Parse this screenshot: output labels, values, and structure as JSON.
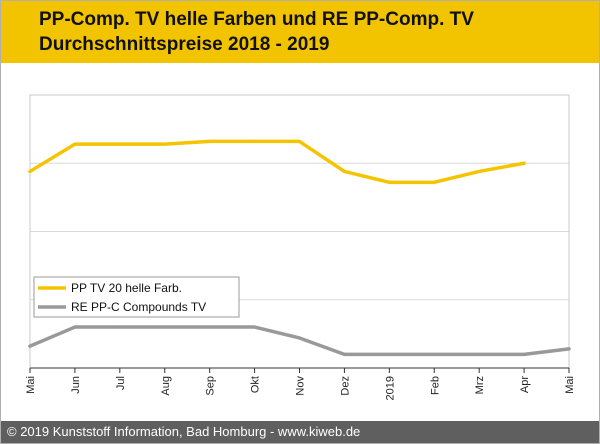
{
  "header": {
    "title_line1": "PP-Comp. TV helle Farben und RE PP-Comp. TV",
    "title_line2": "Durchschnittspreise 2018 - 2019"
  },
  "footer": {
    "copyright": "© 2019 Kunststoff Information, Bad Homburg - www.kiweb.de"
  },
  "colors": {
    "header_bg": "#f2c400",
    "series_1": "#f5c400",
    "series_2": "#999999",
    "footer_bg": "#5f5f5f"
  },
  "chart_data": {
    "type": "line",
    "title": "PP-Comp. TV helle Farben und RE PP-Comp. TV Durchschnittspreise 2018 - 2019",
    "xlabel": "",
    "ylabel": "",
    "categories": [
      "Mai",
      "Jun",
      "Jul",
      "Aug",
      "Sep",
      "Okt",
      "Nov",
      "Dez",
      "2019",
      "Feb",
      "Mrz",
      "Apr",
      "Mai"
    ],
    "ylim": [
      0,
      100
    ],
    "grid": true,
    "legend_position": "left-middle",
    "series": [
      {
        "name": "PP TV 20 helle Farb.",
        "color": "#f5c400",
        "values": [
          72,
          82,
          82,
          82,
          83,
          83,
          83,
          72,
          68,
          68,
          72,
          75,
          null
        ]
      },
      {
        "name": "RE PP-C Compounds TV",
        "color": "#999999",
        "values": [
          8,
          15,
          15,
          15,
          15,
          15,
          11,
          5,
          5,
          5,
          5,
          5,
          7
        ]
      }
    ]
  }
}
